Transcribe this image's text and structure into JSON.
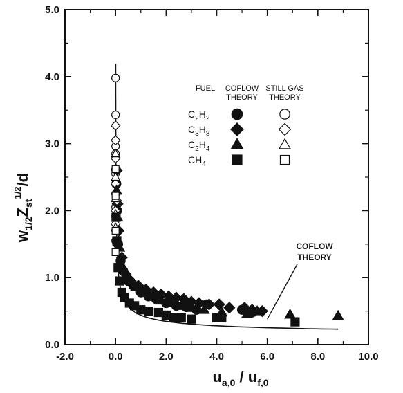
{
  "chart_data": {
    "type": "scatter",
    "xlabel": {
      "base": "u",
      "sub": "a,0",
      "sep": " / ",
      "base2": "u",
      "sub2": "f,0"
    },
    "ylabel": {
      "w": "w",
      "wsub": "1/2",
      "z": "Z",
      "zsub": "st",
      "zsup": "1/2",
      "tail": "/d"
    },
    "xlim": [
      -2.0,
      10.0
    ],
    "ylim": [
      0.0,
      5.0
    ],
    "xticks": [
      "-2.0",
      "0.0",
      "2.0",
      "4.0",
      "6.0",
      "8.0",
      "10.0"
    ],
    "yticks": [
      "0.0",
      "1.0",
      "2.0",
      "3.0",
      "4.0",
      "5.0"
    ],
    "grid": false,
    "legend": {
      "position": "top-right",
      "header_fuel": "FUEL",
      "header_coflow": [
        "COFLOW",
        "THEORY"
      ],
      "header_still": [
        "STILL GAS",
        "THEORY"
      ],
      "entries": [
        {
          "fuel_base": "C",
          "fuel_sub1": "2",
          "fuel_mid": "H",
          "fuel_sub2": "2",
          "marker": "circle"
        },
        {
          "fuel_base": "C",
          "fuel_sub1": "3",
          "fuel_mid": "H",
          "fuel_sub2": "8",
          "marker": "diamond"
        },
        {
          "fuel_base": "C",
          "fuel_sub1": "2",
          "fuel_mid": "H",
          "fuel_sub2": "4",
          "marker": "triangle"
        },
        {
          "fuel_base": "C",
          "fuel_sub1": "",
          "fuel_mid": "H",
          "fuel_sub2": "4",
          "marker": "square"
        }
      ]
    },
    "annotation": {
      "lines": [
        "COFLOW",
        "THEORY"
      ],
      "anchor": [
        6.0,
        0.38
      ]
    },
    "theory_curve": {
      "x0": 0.006,
      "x_end": 8.8,
      "a": 0.42,
      "b": 1.0,
      "c": 0.23
    },
    "series": [
      {
        "name": "C2H2 coflow",
        "marker": "circle",
        "filled": true,
        "points": [
          [
            0.03,
            2.4
          ],
          [
            0.06,
            2.0
          ],
          [
            0.1,
            1.5
          ],
          [
            0.2,
            1.25
          ],
          [
            0.3,
            1.1
          ],
          [
            0.5,
            0.95
          ],
          [
            0.7,
            0.88
          ],
          [
            1.0,
            0.78
          ],
          [
            1.3,
            0.72
          ],
          [
            1.6,
            0.68
          ],
          [
            2.0,
            0.62
          ],
          [
            2.4,
            0.58
          ],
          [
            2.8,
            0.56
          ],
          [
            3.2,
            0.52
          ],
          [
            3.6,
            0.6
          ],
          [
            5.0,
            0.52
          ],
          [
            5.4,
            0.48
          ]
        ]
      },
      {
        "name": "C2H2 still gas",
        "marker": "circle",
        "filled": false,
        "points": [
          [
            0.0,
            3.98
          ],
          [
            0.0,
            3.43
          ],
          [
            0.0,
            2.96
          ],
          [
            0.0,
            2.85
          ],
          [
            0.0,
            2.55
          ],
          [
            0.0,
            2.25
          ],
          [
            0.0,
            2.05
          ],
          [
            0.0,
            1.92
          ],
          [
            0.0,
            1.7
          ],
          [
            0.0,
            1.55
          ]
        ]
      },
      {
        "name": "C3H8 coflow",
        "marker": "diamond",
        "filled": true,
        "points": [
          [
            0.05,
            2.6
          ],
          [
            0.08,
            2.1
          ],
          [
            0.12,
            1.7
          ],
          [
            0.25,
            1.3
          ],
          [
            0.4,
            1.05
          ],
          [
            0.6,
            0.95
          ],
          [
            0.9,
            0.88
          ],
          [
            1.2,
            0.82
          ],
          [
            1.5,
            0.78
          ],
          [
            1.8,
            0.75
          ],
          [
            2.1,
            0.72
          ],
          [
            2.4,
            0.7
          ],
          [
            2.7,
            0.68
          ],
          [
            3.0,
            0.64
          ],
          [
            3.3,
            0.62
          ],
          [
            3.7,
            0.6
          ],
          [
            4.1,
            0.6
          ],
          [
            4.5,
            0.55
          ],
          [
            5.1,
            0.55
          ],
          [
            5.4,
            0.52
          ],
          [
            5.8,
            0.5
          ]
        ]
      },
      {
        "name": "C3H8 still gas",
        "marker": "diamond",
        "filled": false,
        "points": [
          [
            0.0,
            3.27
          ],
          [
            0.0,
            3.05
          ],
          [
            0.0,
            2.78
          ],
          [
            0.0,
            2.62
          ],
          [
            0.0,
            2.4
          ],
          [
            0.05,
            2.15
          ],
          [
            0.0,
            2.0
          ],
          [
            0.0,
            1.8
          ]
        ]
      },
      {
        "name": "C2H4 coflow",
        "marker": "triangle",
        "filled": true,
        "points": [
          [
            0.04,
            2.3
          ],
          [
            0.08,
            1.9
          ],
          [
            0.15,
            1.45
          ],
          [
            0.3,
            1.15
          ],
          [
            0.5,
            0.98
          ],
          [
            0.8,
            0.86
          ],
          [
            1.1,
            0.78
          ],
          [
            1.4,
            0.72
          ],
          [
            1.8,
            0.66
          ],
          [
            2.2,
            0.62
          ],
          [
            2.6,
            0.58
          ],
          [
            3.0,
            0.55
          ],
          [
            3.5,
            0.52
          ],
          [
            4.2,
            0.48
          ],
          [
            5.2,
            0.46
          ],
          [
            5.6,
            0.5
          ],
          [
            6.9,
            0.45
          ],
          [
            8.8,
            0.43
          ]
        ]
      },
      {
        "name": "C2H4 still gas",
        "marker": "triangle",
        "filled": false,
        "points": [
          [
            0.0,
            2.85
          ],
          [
            0.0,
            2.5
          ],
          [
            0.0,
            2.18
          ],
          [
            0.0,
            1.95
          ],
          [
            0.0,
            1.75
          ]
        ]
      },
      {
        "name": "CH4 coflow",
        "marker": "square",
        "filled": true,
        "points": [
          [
            0.02,
            1.9
          ],
          [
            0.05,
            1.55
          ],
          [
            0.1,
            1.15
          ],
          [
            0.15,
            0.95
          ],
          [
            0.25,
            0.78
          ],
          [
            0.35,
            0.7
          ],
          [
            0.55,
            0.62
          ],
          [
            0.75,
            0.58
          ],
          [
            1.0,
            0.52
          ],
          [
            1.3,
            0.5
          ],
          [
            1.7,
            0.48
          ],
          [
            2.0,
            0.44
          ],
          [
            2.3,
            0.4
          ],
          [
            2.6,
            0.4
          ],
          [
            3.0,
            0.38
          ],
          [
            4.0,
            0.4
          ],
          [
            4.2,
            0.4
          ],
          [
            7.1,
            0.34
          ]
        ]
      },
      {
        "name": "CH4 still gas",
        "marker": "square",
        "filled": false,
        "points": [
          [
            0.0,
            2.62
          ],
          [
            0.0,
            2.22
          ],
          [
            0.0,
            1.7
          ],
          [
            0.0,
            1.38
          ]
        ]
      }
    ]
  }
}
